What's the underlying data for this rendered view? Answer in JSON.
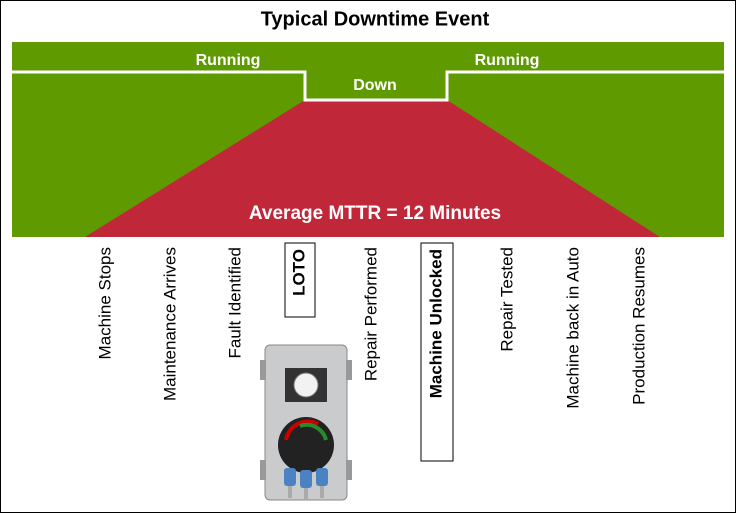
{
  "title": "Typical Downtime Event",
  "states": {
    "running_before": "Running",
    "down": "Down",
    "running_after": "Running"
  },
  "mttr_label": "Average MTTR = 12 Minutes",
  "steps": [
    "Machine Stops",
    "Maintenance Arrives",
    "Fault Identified",
    "LOTO",
    "Repair Performed",
    "Machine Unlocked",
    "Repair Tested",
    "Machine back in Auto",
    "Production Resumes"
  ]
}
